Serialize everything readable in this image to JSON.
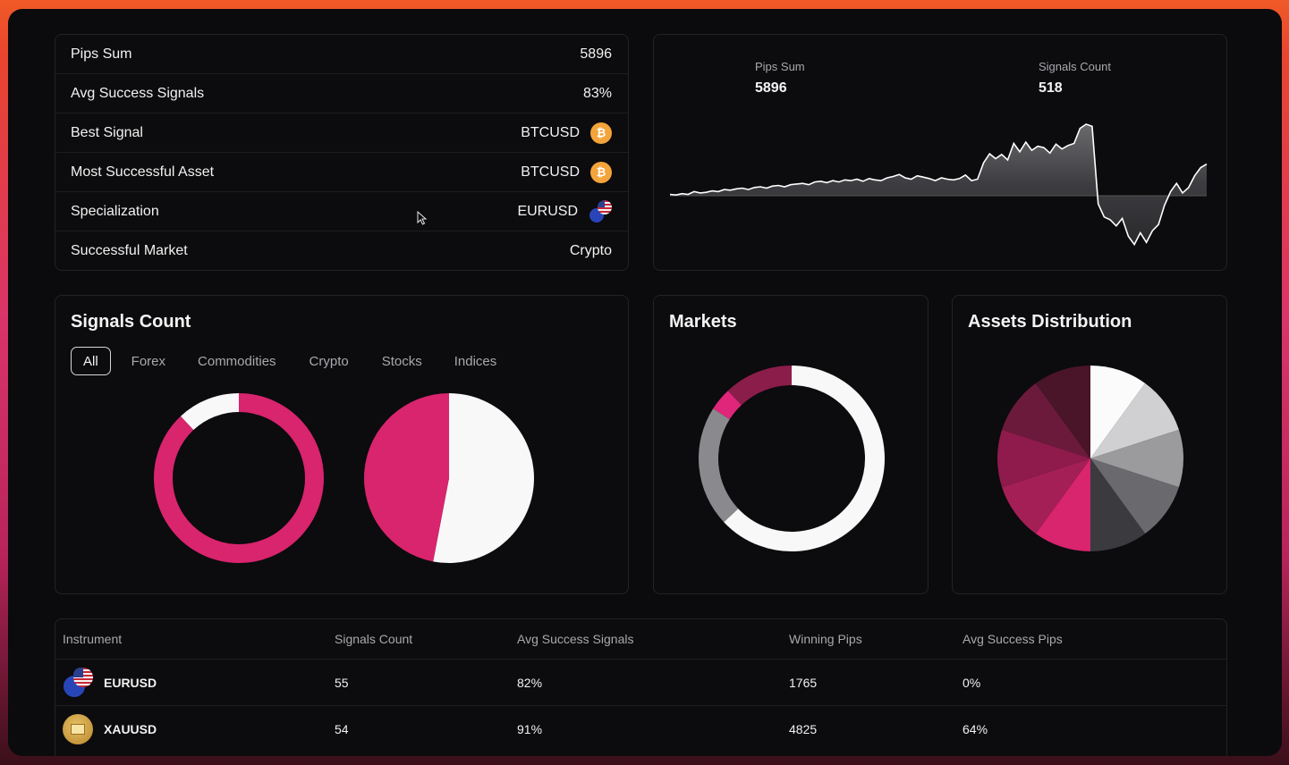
{
  "stats": [
    {
      "label": "Pips Sum",
      "value": "5896",
      "icon": ""
    },
    {
      "label": "Avg Success Signals",
      "value": "83%",
      "icon": ""
    },
    {
      "label": "Best Signal",
      "value": "BTCUSD",
      "icon": "bitcoin-icon"
    },
    {
      "label": "Most Successful Asset",
      "value": "BTCUSD",
      "icon": "bitcoin-icon"
    },
    {
      "label": "Specialization",
      "value": "EURUSD",
      "icon": "eurusd-flag-icon"
    },
    {
      "label": "Successful Market",
      "value": "Crypto",
      "icon": ""
    }
  ],
  "line_panel": {
    "pips_label": "Pips Sum",
    "pips_value": "5896",
    "count_label": "Signals Count",
    "count_value": "518"
  },
  "signals": {
    "title": "Signals Count",
    "tabs": [
      "All",
      "Forex",
      "Commodities",
      "Crypto",
      "Stocks",
      "Indices"
    ],
    "active_tab": "All"
  },
  "markets": {
    "title": "Markets"
  },
  "assets": {
    "title": "Assets Distribution"
  },
  "colors": {
    "accent": "#d9246e",
    "white": "#f8f8f8",
    "background": "#0b0a0c"
  },
  "table": {
    "headers": [
      "Instrument",
      "Signals Count",
      "Avg Success Signals",
      "Winning Pips",
      "Avg Success Pips"
    ],
    "rows": [
      {
        "instrument": "EURUSD",
        "icon": "eurusd-flag-icon",
        "signals": "55",
        "avg_signals": "82%",
        "winning_pips": "1765",
        "avg_pips": "0%"
      },
      {
        "instrument": "XAUUSD",
        "icon": "gold-icon",
        "signals": "54",
        "avg_signals": "91%",
        "winning_pips": "4825",
        "avg_pips": "64%"
      }
    ]
  },
  "chart_data": [
    {
      "type": "line",
      "title": "",
      "series": [
        {
          "values": [
            0.2,
            0.1,
            0.3,
            0.2,
            0.6,
            0.4,
            0.5,
            0.7,
            0.6,
            0.9,
            0.8,
            1.0,
            1.1,
            0.9,
            1.2,
            1.3,
            1.1,
            1.4,
            1.5,
            1.3,
            1.6,
            1.7,
            1.8,
            1.6,
            2.0,
            2.1,
            1.9,
            2.2,
            2.0,
            2.3,
            2.2,
            2.4,
            2.1,
            2.5,
            2.3,
            2.2,
            2.6,
            2.8,
            3.1,
            2.6,
            2.4,
            2.9,
            2.7,
            2.5,
            2.2,
            2.6,
            2.4,
            2.3,
            2.5,
            3.0,
            2.2,
            2.4,
            4.8,
            6.1,
            5.4,
            6.0,
            5.2,
            7.6,
            6.4,
            7.8,
            6.6,
            7.2,
            7.0,
            6.2,
            7.5,
            6.8,
            7.3,
            7.6,
            9.8,
            10.4,
            10.1,
            -1.2,
            -3.1,
            -3.5,
            -4.4,
            -3.3,
            -5.9,
            -7.1,
            -5.4,
            -6.8,
            -5.1,
            -4.2,
            -1.4,
            0.6,
            1.8,
            0.4,
            1.2,
            2.9,
            4.1,
            4.6
          ]
        }
      ]
    },
    {
      "type": "pie",
      "title": "",
      "variant": "ring",
      "slices": [
        {
          "value": 88,
          "color": "#d9246e"
        },
        {
          "value": 12,
          "color": "#f8f8f8"
        }
      ]
    },
    {
      "type": "pie",
      "title": "",
      "slices": [
        {
          "value": 53,
          "color": "#f8f8f8"
        },
        {
          "value": 47,
          "color": "#d9246e"
        }
      ]
    },
    {
      "type": "pie",
      "title": "Markets",
      "variant": "ring",
      "slices": [
        {
          "value": 63,
          "color": "#f8f8f8"
        },
        {
          "value": 21,
          "color": "#8a898d"
        },
        {
          "value": 4,
          "color": "#e0267a"
        },
        {
          "value": 12,
          "color": "#8b1d4b"
        }
      ]
    },
    {
      "type": "pie",
      "title": "Assets Distribution",
      "slices": [
        {
          "value": 10,
          "color": "#fbfbfb"
        },
        {
          "value": 10,
          "color": "#d0d0d2"
        },
        {
          "value": 10,
          "color": "#9b9b9e"
        },
        {
          "value": 10,
          "color": "#6a696d"
        },
        {
          "value": 10,
          "color": "#3b3a3e"
        },
        {
          "value": 10,
          "color": "#d9246e"
        },
        {
          "value": 10,
          "color": "#a51f57"
        },
        {
          "value": 10,
          "color": "#8e1b4c"
        },
        {
          "value": 10,
          "color": "#6b1a3c"
        },
        {
          "value": 10,
          "color": "#4a1429"
        }
      ]
    }
  ]
}
